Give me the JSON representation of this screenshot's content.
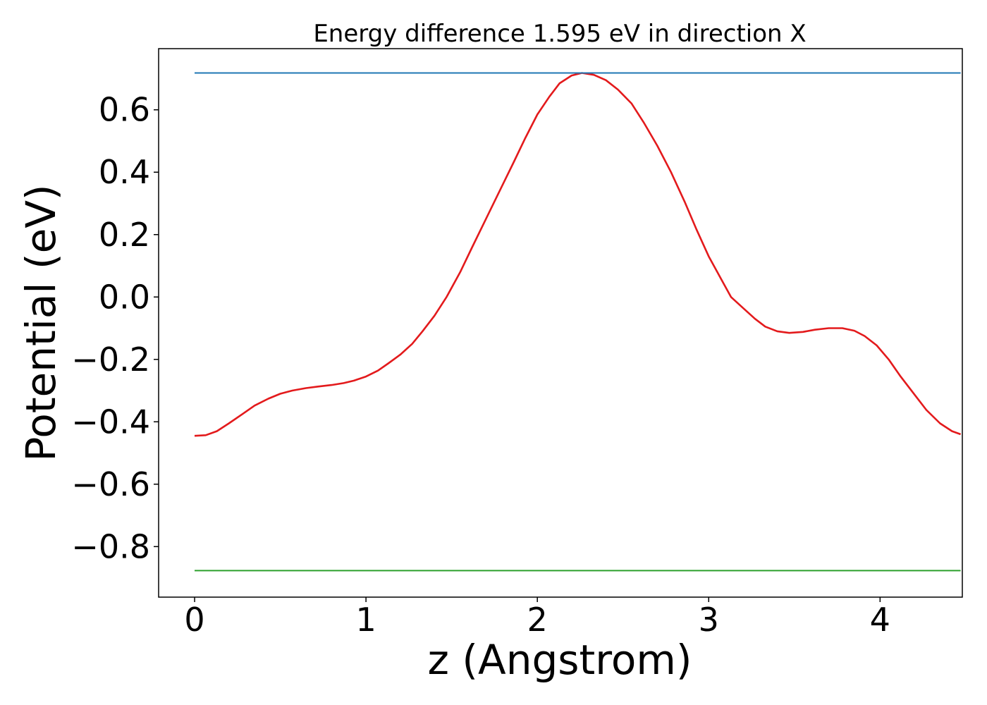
{
  "chart_data": {
    "type": "line",
    "title": "Energy difference 1.595 eV in direction X",
    "xlabel": "z (Angstrom)",
    "ylabel": "Potential (eV)",
    "xlim": [
      -0.21,
      4.48
    ],
    "ylim": [
      -0.962,
      0.796
    ],
    "xticks": [
      0,
      1,
      2,
      3,
      4
    ],
    "xtick_labels": [
      "0",
      "1",
      "2",
      "3",
      "4"
    ],
    "yticks": [
      -0.8,
      -0.6,
      -0.4,
      -0.2,
      0.0,
      0.2,
      0.4,
      0.6
    ],
    "ytick_labels": [
      "−0.8",
      "−0.6",
      "−0.4",
      "−0.2",
      "0.0",
      "0.2",
      "0.4",
      "0.6"
    ],
    "grid": false,
    "colors": {
      "potential": "#e31a1c",
      "upper": "#1f77b4",
      "lower": "#2ca02c"
    },
    "series": [
      {
        "key": "potential",
        "x": [
          0.0,
          0.065,
          0.13,
          0.2,
          0.28,
          0.35,
          0.43,
          0.5,
          0.57,
          0.65,
          0.72,
          0.8,
          0.87,
          0.93,
          1.0,
          1.07,
          1.13,
          1.2,
          1.27,
          1.33,
          1.4,
          1.47,
          1.55,
          1.62,
          1.7,
          1.78,
          1.86,
          1.93,
          2.0,
          2.07,
          2.13,
          2.2,
          2.26,
          2.33,
          2.4,
          2.47,
          2.55,
          2.62,
          2.7,
          2.78,
          2.86,
          2.93,
          3.0,
          3.07,
          3.13,
          3.2,
          3.27,
          3.33,
          3.4,
          3.47,
          3.55,
          3.62,
          3.7,
          3.78,
          3.85,
          3.91,
          3.98,
          4.05,
          4.12,
          4.2,
          4.27,
          4.35,
          4.42,
          4.47
        ],
        "y": [
          -0.445,
          -0.443,
          -0.43,
          -0.405,
          -0.375,
          -0.348,
          -0.326,
          -0.31,
          -0.3,
          -0.292,
          -0.287,
          -0.282,
          -0.276,
          -0.268,
          -0.255,
          -0.236,
          -0.213,
          -0.185,
          -0.15,
          -0.11,
          -0.06,
          0.0,
          0.08,
          0.16,
          0.25,
          0.34,
          0.43,
          0.51,
          0.585,
          0.642,
          0.685,
          0.71,
          0.718,
          0.712,
          0.695,
          0.665,
          0.62,
          0.56,
          0.485,
          0.4,
          0.305,
          0.215,
          0.13,
          0.06,
          0.0,
          -0.035,
          -0.07,
          -0.095,
          -0.11,
          -0.115,
          -0.112,
          -0.105,
          -0.1,
          -0.1,
          -0.108,
          -0.125,
          -0.155,
          -0.2,
          -0.255,
          -0.312,
          -0.362,
          -0.405,
          -0.43,
          -0.44
        ]
      },
      {
        "key": "upper",
        "x": [
          0.0,
          4.47
        ],
        "y": [
          0.718,
          0.718
        ]
      },
      {
        "key": "lower",
        "x": [
          0.0,
          4.47
        ],
        "y": [
          -0.877,
          -0.877
        ]
      }
    ]
  }
}
